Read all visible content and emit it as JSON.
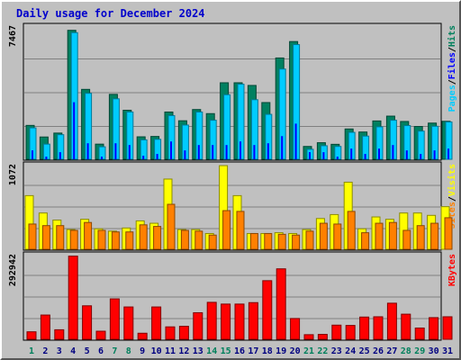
{
  "chart_data": [
    {
      "type": "bar",
      "title": "Daily usage for December 2024",
      "categories": [
        "1",
        "2",
        "3",
        "4",
        "5",
        "6",
        "7",
        "8",
        "9",
        "10",
        "11",
        "12",
        "13",
        "14",
        "15",
        "16",
        "17",
        "18",
        "19",
        "20",
        "21",
        "22",
        "23",
        "24",
        "25",
        "26",
        "27",
        "28",
        "29",
        "30",
        "31"
      ],
      "weekend_days": [
        1,
        7,
        8,
        14,
        15,
        21,
        22,
        28,
        29
      ],
      "panels": [
        {
          "name": "pages-files-hits",
          "max_label": "7467",
          "ymax": 7467,
          "right_legend": [
            {
              "text": "Pages",
              "color": "#00ccff"
            },
            {
              "text": "/",
              "color": "#000000"
            },
            {
              "text": "Files",
              "color": "#0000ff"
            },
            {
              "text": "/",
              "color": "#000000"
            },
            {
              "text": "Hits",
              "color": "#00805c"
            }
          ],
          "series": [
            {
              "name": "Hits",
              "color": "#008060",
              "values": [
                1900,
                1250,
                1470,
                7230,
                3920,
                850,
                3640,
                2750,
                1260,
                1280,
                2650,
                2160,
                2790,
                2560,
                4290,
                4290,
                4140,
                3180,
                5680,
                6600,
                720,
                930,
                840,
                1700,
                1530,
                2150,
                2420,
                2120,
                1840,
                2030,
                2130
              ]
            },
            {
              "name": "Files",
              "color": "#0000ff",
              "values": [
                500,
                150,
                400,
                3200,
                900,
                150,
                900,
                800,
                200,
                300,
                1000,
                500,
                800,
                800,
                800,
                1000,
                800,
                900,
                1300,
                2000,
                400,
                400,
                150,
                600,
                300,
                600,
                800,
                500,
                300,
                500,
                600
              ]
            },
            {
              "name": "Pages",
              "color": "#00ccff",
              "values": [
                1760,
                850,
                1380,
                7100,
                3700,
                700,
                3390,
                2650,
                1090,
                1120,
                2450,
                1920,
                2650,
                2190,
                3620,
                4210,
                3340,
                2520,
                5060,
                6430,
                560,
                760,
                720,
                1510,
                1300,
                1820,
                2190,
                1890,
                1580,
                1850,
                2090
              ]
            }
          ]
        },
        {
          "name": "visits-sites",
          "max_label": "1072",
          "ymax": 1072,
          "right_legend": [
            {
              "text": "Sites",
              "color": "#ff8000"
            },
            {
              "text": "/",
              "color": "#000000"
            },
            {
              "text": "Visits",
              "color": "#ffff00"
            }
          ],
          "series": [
            {
              "name": "Visits",
              "color": "#ffff00",
              "values": [
                680,
                460,
                370,
                250,
                380,
                260,
                230,
                270,
                360,
                330,
                890,
                250,
                250,
                200,
                1060,
                680,
                200,
                200,
                210,
                200,
                250,
                390,
                440,
                850,
                260,
                410,
                380,
                460,
                460,
                430,
                540
              ]
            },
            {
              "name": "Sites",
              "color": "#ff8000",
              "values": [
                320,
                300,
                300,
                240,
                340,
                240,
                220,
                220,
                310,
                290,
                570,
                240,
                230,
                180,
                490,
                480,
                200,
                200,
                190,
                180,
                230,
                330,
                320,
                480,
                210,
                330,
                340,
                240,
                300,
                330,
                400
              ]
            }
          ]
        },
        {
          "name": "kbytes",
          "max_label": "292942",
          "ymax": 292942,
          "right_legend": [
            {
              "text": "KBytes",
              "color": "#ff0000"
            }
          ],
          "series": [
            {
              "name": "KBytes",
              "color": "#ff0000",
              "values": [
                26000,
                84000,
                33000,
                288000,
                116000,
                28000,
                140000,
                112000,
                21000,
                112000,
                43000,
                45000,
                92000,
                128000,
                122000,
                122000,
                127000,
                203000,
                244000,
                72000,
                16000,
                17000,
                49000,
                48000,
                77000,
                78000,
                125000,
                87000,
                39000,
                75000,
                78000
              ]
            }
          ]
        }
      ]
    }
  ]
}
